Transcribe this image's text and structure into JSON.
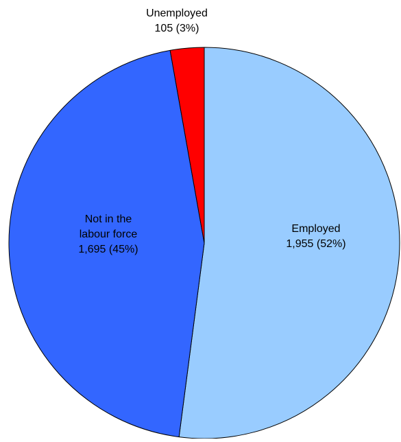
{
  "chart_data": {
    "type": "pie",
    "title": "",
    "slices": [
      {
        "name": "Employed",
        "label_lines": [
          "Employed"
        ],
        "value": 1955,
        "value_label": "1,955 (52%)",
        "percent": 52,
        "color": "#99ccff"
      },
      {
        "name": "Not in the labour force",
        "label_lines": [
          "Not in the",
          "labour force"
        ],
        "value": 1695,
        "value_label": "1,695 (45%)",
        "percent": 45,
        "color": "#3366ff"
      },
      {
        "name": "Unemployed",
        "label_lines": [
          "Unemployed"
        ],
        "value": 105,
        "value_label": "105 (3%)",
        "percent": 3,
        "color": "#ff0000"
      }
    ],
    "start_angle": "12 o'clock",
    "direction": "clockwise",
    "legend": "none"
  }
}
